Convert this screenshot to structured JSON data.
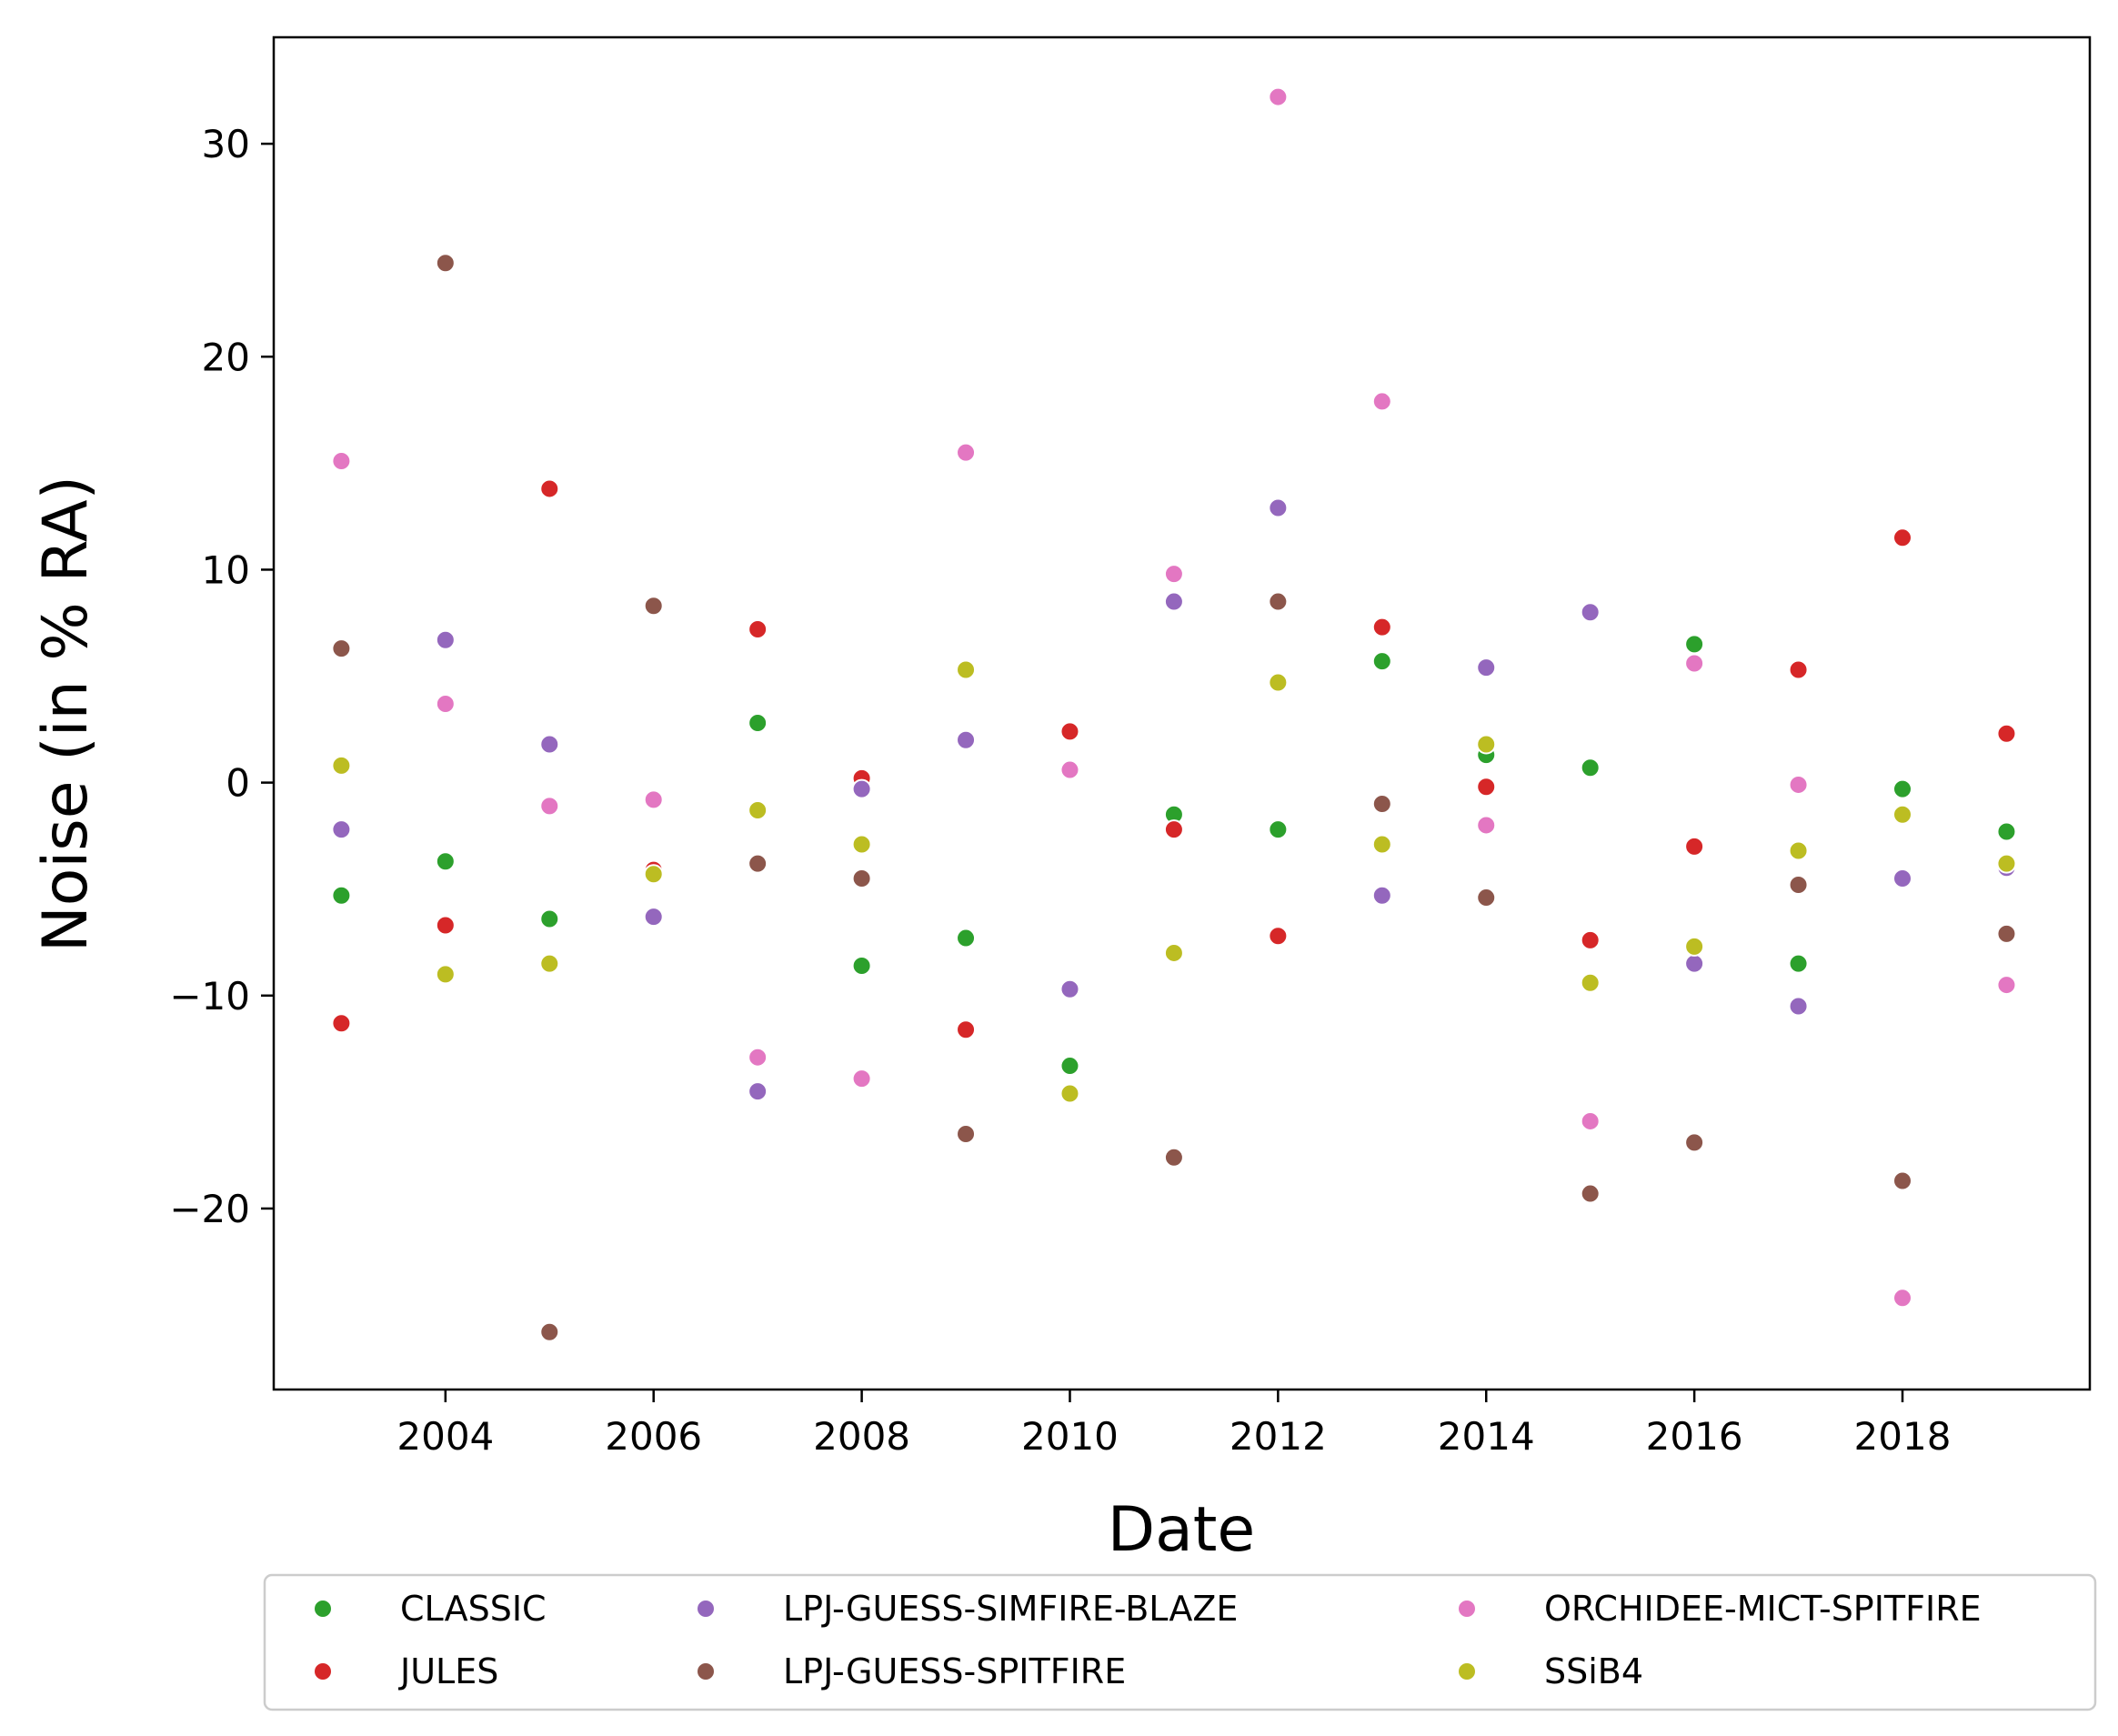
{
  "chart_data": {
    "type": "scatter",
    "title": "",
    "xlabel": "Date",
    "ylabel": "Noise (in % RA)",
    "xlim": [
      2002.35,
      2019.8
    ],
    "ylim": [
      -28.5,
      35.0
    ],
    "xticks": [
      2004,
      2006,
      2008,
      2010,
      2012,
      2014,
      2016,
      2018
    ],
    "yticks": [
      -20,
      -10,
      0,
      10,
      20,
      30
    ],
    "ytick_labels": [
      "−20",
      "−10",
      "0",
      "10",
      "20",
      "30"
    ],
    "grid": false,
    "legend_position": "below-center",
    "legend_columns": 3,
    "x": [
      2003,
      2004,
      2005,
      2006,
      2007,
      2008,
      2009,
      2010,
      2011,
      2012,
      2013,
      2014,
      2015,
      2016,
      2017,
      2018,
      2019
    ],
    "series": [
      {
        "name": "CLASSIC",
        "color": "#2ca02c",
        "values": [
          -5.3,
          -3.7,
          -6.4,
          -4.2,
          2.8,
          -8.6,
          -7.3,
          -13.3,
          -1.5,
          -2.2,
          5.7,
          1.3,
          0.7,
          6.5,
          -8.5,
          -0.3,
          -2.3
        ]
      },
      {
        "name": "JULES",
        "color": "#d62728",
        "values": [
          -11.3,
          -6.7,
          13.8,
          -4.1,
          7.2,
          0.2,
          -11.6,
          2.4,
          -2.2,
          -7.2,
          7.3,
          -0.2,
          -7.4,
          -3.0,
          5.3,
          11.5,
          2.3
        ]
      },
      {
        "name": "LPJ-GUESS-SIMFIRE-BLAZE",
        "color": "#9467bd",
        "values": [
          -2.2,
          6.7,
          1.8,
          -6.3,
          -14.5,
          -0.3,
          2.0,
          -9.7,
          8.5,
          12.9,
          -5.3,
          5.4,
          8.0,
          -8.5,
          -10.5,
          -4.5,
          -4.0
        ]
      },
      {
        "name": "LPJ-GUESS-SPITFIRE",
        "color": "#8c564b",
        "values": [
          6.3,
          24.4,
          -25.8,
          8.3,
          -3.8,
          -4.5,
          -16.5,
          null,
          -17.6,
          8.5,
          -1.0,
          -5.4,
          -19.3,
          -16.9,
          -4.8,
          -18.7,
          -7.1
        ]
      },
      {
        "name": "ORCHIDEE-MICT-SPITFIRE",
        "color": "#e377c2",
        "values": [
          15.1,
          3.7,
          -1.1,
          -0.8,
          -12.9,
          -13.9,
          15.5,
          0.6,
          9.8,
          32.2,
          17.9,
          -2.0,
          -15.9,
          5.6,
          -0.1,
          -24.2,
          -9.5
        ]
      },
      {
        "name": "SSiB4",
        "color": "#bcbd22",
        "values": [
          0.8,
          -9.0,
          -8.5,
          -4.3,
          -1.3,
          -2.9,
          5.3,
          -14.6,
          -8.0,
          4.7,
          -2.9,
          1.8,
          -9.4,
          -7.7,
          -3.2,
          -1.5,
          -3.8
        ]
      }
    ]
  }
}
